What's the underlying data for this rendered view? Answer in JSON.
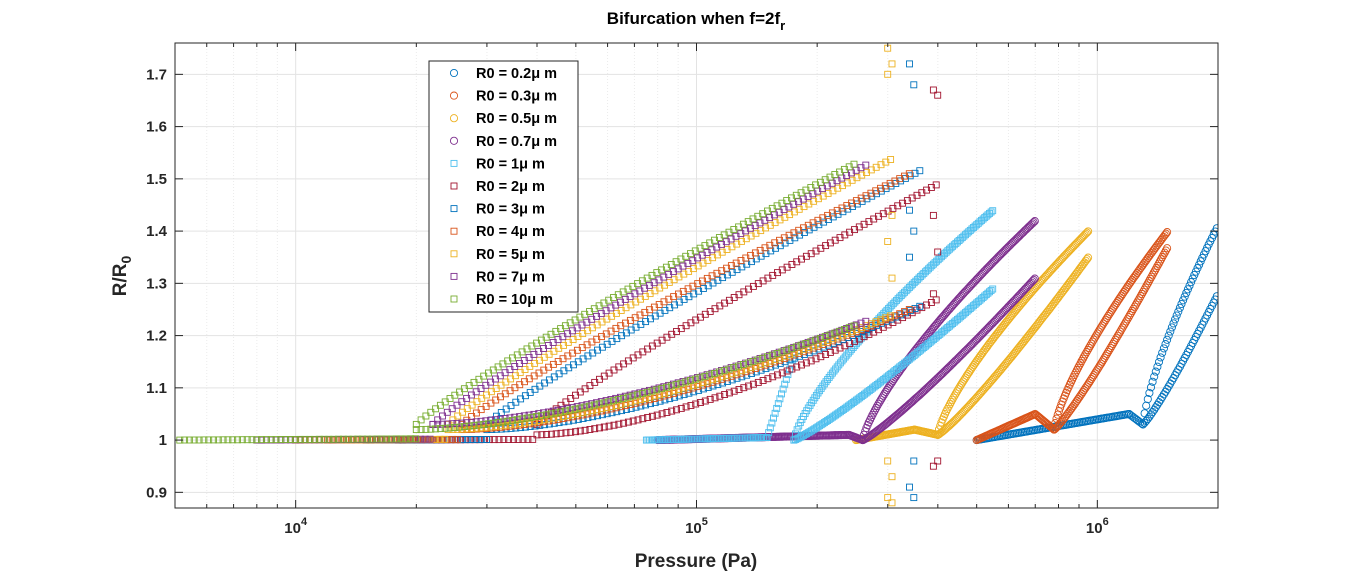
{
  "chart_data": {
    "type": "scatter",
    "title": "Bifurcation when f=2f",
    "title_subscript": "r",
    "xlabel": "Pressure (Pa)",
    "ylabel": "R/R",
    "ylabel_subscript": "0",
    "xscale": "log",
    "xlim": [
      5000,
      2000000
    ],
    "ylim": [
      0.87,
      1.76
    ],
    "grid": true,
    "legend_position": "upper-left",
    "x_ticks": [
      {
        "base": "10",
        "exp": "4",
        "value": 10000
      },
      {
        "base": "10",
        "exp": "5",
        "value": 100000
      },
      {
        "base": "10",
        "exp": "6",
        "value": 1000000
      }
    ],
    "y_ticks": [
      {
        "value": 0.9,
        "label": "0.9"
      },
      {
        "value": 1.0,
        "label": "1"
      },
      {
        "value": 1.1,
        "label": "1.1"
      },
      {
        "value": 1.2,
        "label": "1.2"
      },
      {
        "value": 1.3,
        "label": "1.3"
      },
      {
        "value": 1.4,
        "label": "1.4"
      },
      {
        "value": 1.5,
        "label": "1.5"
      },
      {
        "value": 1.6,
        "label": "1.6"
      },
      {
        "value": 1.7,
        "label": "1.7"
      }
    ],
    "series": [
      {
        "name": "R0 = 0.2μ m",
        "label": "R0 = 0.2μ m",
        "color": "#0072BD",
        "marker": "circle",
        "kind": "small-bubble",
        "start": 500000,
        "turn": 1200000,
        "dip_x": 1300000,
        "dip_y": 1.03,
        "end": 2000000,
        "pre_slope": 0.05,
        "upper_end_y": 1.41,
        "lower_end_y": 1.28,
        "step": 0.004
      },
      {
        "name": "R0 = 0.3μ m",
        "label": "R0 = 0.3μ m",
        "color": "#D95319",
        "marker": "circle",
        "kind": "small-bubble",
        "start": 500000,
        "turn": 700000,
        "dip_x": 780000,
        "dip_y": 1.02,
        "end": 1500000,
        "pre_slope": 0.05,
        "upper_end_y": 1.4,
        "lower_end_y": 1.37,
        "step": 0.003
      },
      {
        "name": "R0 = 0.5μ m",
        "label": "R0 = 0.5μ m",
        "color": "#EDB120",
        "marker": "circle",
        "kind": "small-bubble",
        "start": 250000,
        "turn": 350000,
        "dip_x": 400000,
        "dip_y": 1.01,
        "end": 950000,
        "pre_slope": 0.02,
        "upper_end_y": 1.4,
        "lower_end_y": 1.35,
        "step": 0.003
      },
      {
        "name": "R0 = 0.7μ m",
        "label": "R0 = 0.7μ m",
        "color": "#7E2F8E",
        "marker": "circle",
        "kind": "small-bubble",
        "start": 80000,
        "turn": 240000,
        "dip_x": 260000,
        "dip_y": 1.0,
        "end": 700000,
        "pre_slope": 0.01,
        "upper_end_y": 1.42,
        "lower_end_y": 1.31,
        "step": 0.003
      },
      {
        "name": "R0 = 1μ m",
        "label": "R0 = 1μ m",
        "color": "#4DBEEE",
        "marker": "square",
        "kind": "mid-bubble",
        "start": 75000,
        "turn": 150000,
        "dip_x": 175000,
        "dip_y": 1.0,
        "end": 550000,
        "pre_slope": 0.005,
        "upper_end_y": 1.44,
        "lower_end_y": 1.29,
        "step": 0.004
      },
      {
        "name": "R0 = 2μ m",
        "label": "R0 = 2μ m",
        "color": "#A2142F",
        "marker": "square",
        "kind": "large-bubble",
        "start": 18000,
        "knee": 40000,
        "end": 400000,
        "upper_end_y": 1.49,
        "lower_end_y": 1.27,
        "lower_start_y": 1.01,
        "step": 0.012,
        "scatter_x": 390000,
        "scatter_y": [
          1.67,
          1.66,
          1.43,
          1.36,
          1.28,
          0.96,
          0.95
        ]
      },
      {
        "name": "R0 = 3μ m",
        "label": "R0 = 3μ m",
        "color": "#0072BD",
        "marker": "square",
        "kind": "large-bubble",
        "start": 15000,
        "knee": 30000,
        "end": 370000,
        "upper_end_y": 1.52,
        "lower_end_y": 1.26,
        "lower_start_y": 1.02,
        "step": 0.012,
        "scatter_x": 340000,
        "scatter_y": [
          1.72,
          1.68,
          1.44,
          1.4,
          1.35,
          0.96,
          0.91,
          0.89
        ]
      },
      {
        "name": "R0 = 4μ m",
        "label": "R0 = 4μ m",
        "color": "#D95319",
        "marker": "square",
        "kind": "large-bubble",
        "start": 12000,
        "knee": 26000,
        "end": 340000,
        "upper_end_y": 1.51,
        "lower_end_y": 1.25,
        "lower_start_y": 1.02,
        "step": 0.012
      },
      {
        "name": "R0 = 5μ m",
        "label": "R0 = 5μ m",
        "color": "#EDB120",
        "marker": "square",
        "kind": "large-bubble",
        "start": 10000,
        "knee": 24000,
        "end": 310000,
        "upper_end_y": 1.54,
        "lower_end_y": 1.24,
        "lower_start_y": 1.02,
        "step": 0.012,
        "scatter_x": 300000,
        "scatter_y": [
          1.75,
          1.72,
          1.7,
          1.43,
          1.38,
          1.31,
          0.96,
          0.93,
          0.89,
          0.88
        ]
      },
      {
        "name": "R0 = 7μ m",
        "label": "R0 = 7μ m",
        "color": "#7E2F8E",
        "marker": "square",
        "kind": "large-bubble",
        "start": 8000,
        "knee": 22000,
        "end": 270000,
        "upper_end_y": 1.53,
        "lower_end_y": 1.23,
        "lower_start_y": 1.03,
        "step": 0.012
      },
      {
        "name": "R0 = 10μ m",
        "label": "R0 = 10μ m",
        "color": "#77AC30",
        "marker": "square",
        "kind": "large-bubble",
        "start": 5000,
        "knee": 20000,
        "end": 250000,
        "upper_end_y": 1.53,
        "lower_end_y": 1.22,
        "lower_start_y": 1.02,
        "step": 0.012
      }
    ]
  }
}
